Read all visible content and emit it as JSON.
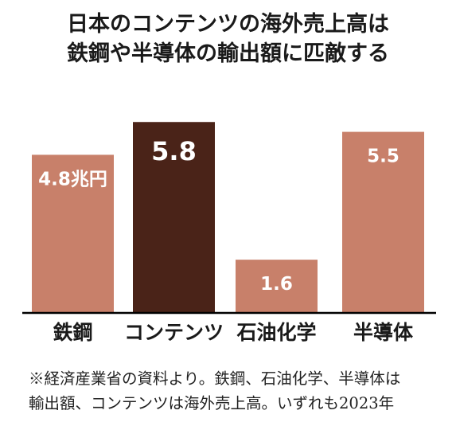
{
  "title_lines": [
    "日本のコンテンツの海外売上高は",
    "鉄鋼や半導体の輸出額に匹敵する"
  ],
  "note_lines": [
    "※経済産業省の資料より。鉄鋼、石油化学、半導体は",
    "輸出額、コンテンツは海外売上高。いずれも2023年"
  ],
  "chart_data": {
    "type": "bar",
    "title": "日本のコンテンツの海外売上高は鉄鋼や半導体の輸出額に匹敵する",
    "categories": [
      "鉄鋼",
      "コンテンツ",
      "石油化学",
      "半導体"
    ],
    "values": [
      4.8,
      5.8,
      1.6,
      5.5
    ],
    "data_labels": [
      "4.8兆円",
      "5.8",
      "1.6",
      "5.5"
    ],
    "unit": "兆円",
    "ylim": [
      0,
      6.0
    ],
    "grid": false,
    "legend": "none",
    "colors": [
      "#c8806a",
      "#4a2318",
      "#c8806a",
      "#c8806a"
    ],
    "baseline_color": "#000000"
  }
}
